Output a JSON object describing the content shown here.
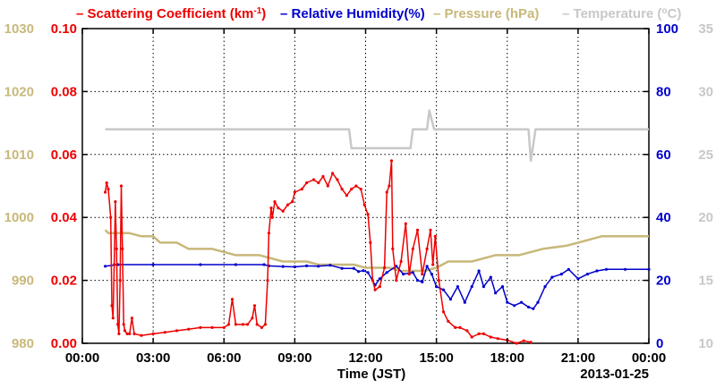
{
  "chart_data": {
    "type": "line",
    "legend": [
      {
        "label": "Scattering Coefficient (km",
        "sup": "-1",
        "suffix": ")",
        "color": "#ee0000"
      },
      {
        "label": "Relative Humidity(%)",
        "sup": "",
        "suffix": "",
        "color": "#0000cc"
      },
      {
        "label": "Pressure (hPa)",
        "sup": "",
        "suffix": "",
        "color": "#c8b87a"
      },
      {
        "label": "Temperature (",
        "sup": "o",
        "suffix": "C)",
        "color": "#c8c8c8"
      }
    ],
    "xlabel": "Time (JST)",
    "date_label": "2013-01-25",
    "x_ticks": [
      "00:00",
      "03:00",
      "06:00",
      "09:00",
      "12:00",
      "15:00",
      "18:00",
      "21:00",
      "00:00"
    ],
    "x_range_hours": [
      0,
      24
    ],
    "grid": true,
    "axes": {
      "pressure": {
        "ticks": [
          "980",
          "990",
          "1000",
          "1010",
          "1020",
          "1030"
        ],
        "range": [
          980,
          1030
        ],
        "color": "#c8b87a"
      },
      "scattering": {
        "ticks": [
          "0.00",
          "0.02",
          "0.04",
          "0.06",
          "0.08",
          "0.10"
        ],
        "range": [
          0,
          0.1
        ],
        "color": "#ee0000"
      },
      "humidity": {
        "ticks": [
          "0",
          "20",
          "40",
          "60",
          "80",
          "100"
        ],
        "range": [
          0,
          100
        ],
        "color": "#0000cc"
      },
      "temperature": {
        "ticks": [
          "10",
          "15",
          "20",
          "25",
          "30",
          "35"
        ],
        "range": [
          10,
          35
        ],
        "color": "#c8c8c8"
      }
    },
    "series": [
      {
        "key": "scattering",
        "color": "#ee0000",
        "points": [
          [
            0.97,
            0.048
          ],
          [
            1.03,
            0.051
          ],
          [
            1.1,
            0.049
          ],
          [
            1.2,
            0.04
          ],
          [
            1.25,
            0.012
          ],
          [
            1.3,
            0.008
          ],
          [
            1.35,
            0.025
          ],
          [
            1.4,
            0.045
          ],
          [
            1.45,
            0.03
          ],
          [
            1.5,
            0.006
          ],
          [
            1.55,
            0.003
          ],
          [
            1.6,
            0.02
          ],
          [
            1.65,
            0.05
          ],
          [
            1.7,
            0.03
          ],
          [
            1.75,
            0.006
          ],
          [
            1.8,
            0.004
          ],
          [
            1.9,
            0.003
          ],
          [
            2.0,
            0.003
          ],
          [
            2.1,
            0.008
          ],
          [
            2.2,
            0.003
          ],
          [
            2.5,
            0.0025
          ],
          [
            3.0,
            0.003
          ],
          [
            3.5,
            0.0035
          ],
          [
            4.0,
            0.004
          ],
          [
            4.5,
            0.0045
          ],
          [
            5.0,
            0.005
          ],
          [
            5.5,
            0.005
          ],
          [
            6.0,
            0.005
          ],
          [
            6.2,
            0.006
          ],
          [
            6.35,
            0.014
          ],
          [
            6.5,
            0.006
          ],
          [
            6.8,
            0.006
          ],
          [
            7.0,
            0.006
          ],
          [
            7.2,
            0.008
          ],
          [
            7.3,
            0.012
          ],
          [
            7.4,
            0.006
          ],
          [
            7.6,
            0.005
          ],
          [
            7.75,
            0.006
          ],
          [
            7.85,
            0.02
          ],
          [
            7.9,
            0.035
          ],
          [
            8.0,
            0.043
          ],
          [
            8.05,
            0.04
          ],
          [
            8.15,
            0.045
          ],
          [
            8.3,
            0.043
          ],
          [
            8.5,
            0.042
          ],
          [
            8.7,
            0.044
          ],
          [
            8.9,
            0.045
          ],
          [
            9.0,
            0.048
          ],
          [
            9.3,
            0.049
          ],
          [
            9.5,
            0.051
          ],
          [
            9.8,
            0.052
          ],
          [
            10.0,
            0.051
          ],
          [
            10.2,
            0.053
          ],
          [
            10.4,
            0.05
          ],
          [
            10.6,
            0.054
          ],
          [
            10.8,
            0.052
          ],
          [
            11.0,
            0.049
          ],
          [
            11.2,
            0.047
          ],
          [
            11.4,
            0.049
          ],
          [
            11.6,
            0.05
          ],
          [
            11.8,
            0.049
          ],
          [
            11.95,
            0.044
          ],
          [
            12.1,
            0.041
          ],
          [
            12.2,
            0.032
          ],
          [
            12.3,
            0.02
          ],
          [
            12.4,
            0.017
          ],
          [
            12.6,
            0.018
          ],
          [
            12.8,
            0.024
          ],
          [
            12.9,
            0.048
          ],
          [
            13.0,
            0.05
          ],
          [
            13.1,
            0.058
          ],
          [
            13.15,
            0.03
          ],
          [
            13.3,
            0.02
          ],
          [
            13.5,
            0.026
          ],
          [
            13.7,
            0.038
          ],
          [
            13.85,
            0.022
          ],
          [
            14.0,
            0.03
          ],
          [
            14.2,
            0.036
          ],
          [
            14.4,
            0.022
          ],
          [
            14.6,
            0.03
          ],
          [
            14.75,
            0.036
          ],
          [
            14.85,
            0.025
          ],
          [
            14.95,
            0.034
          ],
          [
            15.1,
            0.02
          ],
          [
            15.3,
            0.01
          ],
          [
            15.5,
            0.007
          ],
          [
            15.8,
            0.005
          ],
          [
            16.0,
            0.005
          ],
          [
            16.3,
            0.004
          ],
          [
            16.5,
            0.002
          ],
          [
            16.8,
            0.003
          ],
          [
            17.0,
            0.003
          ],
          [
            17.3,
            0.002
          ],
          [
            17.6,
            0.0015
          ],
          [
            18.0,
            0.001
          ],
          [
            18.4,
            0.0
          ],
          [
            18.7,
            0.0008
          ],
          [
            19.0,
            0.0003
          ]
        ]
      },
      {
        "key": "humidity",
        "color": "#0000cc",
        "points": [
          [
            0.97,
            24.5
          ],
          [
            1.5,
            25
          ],
          [
            3.0,
            25
          ],
          [
            5.0,
            25
          ],
          [
            6.5,
            25
          ],
          [
            7.7,
            25
          ],
          [
            7.9,
            24.6
          ],
          [
            8.5,
            24.4
          ],
          [
            9.0,
            24.3
          ],
          [
            9.5,
            24.6
          ],
          [
            10.0,
            24.5
          ],
          [
            10.5,
            24.8
          ],
          [
            11.0,
            23.8
          ],
          [
            11.5,
            23.8
          ],
          [
            11.7,
            22.8
          ],
          [
            11.9,
            23.1
          ],
          [
            12.1,
            22.5
          ],
          [
            12.4,
            18.5
          ],
          [
            12.6,
            20.5
          ],
          [
            12.9,
            22.5
          ],
          [
            13.3,
            24.5
          ],
          [
            13.6,
            22.0
          ],
          [
            14.0,
            22.5
          ],
          [
            14.2,
            20.0
          ],
          [
            14.4,
            19.5
          ],
          [
            14.6,
            24.5
          ],
          [
            14.8,
            22.0
          ],
          [
            15.0,
            18.0
          ],
          [
            15.3,
            17.0
          ],
          [
            15.6,
            14.0
          ],
          [
            15.9,
            18.0
          ],
          [
            16.2,
            13.0
          ],
          [
            16.5,
            18.0
          ],
          [
            16.8,
            23.0
          ],
          [
            17.0,
            18.0
          ],
          [
            17.3,
            21.0
          ],
          [
            17.5,
            16.0
          ],
          [
            17.8,
            18.0
          ],
          [
            18.0,
            13.0
          ],
          [
            18.3,
            12.0
          ],
          [
            18.6,
            13.0
          ],
          [
            18.9,
            11.5
          ],
          [
            19.1,
            11.0
          ],
          [
            19.3,
            13.0
          ],
          [
            19.6,
            18.0
          ],
          [
            19.9,
            21.0
          ],
          [
            20.3,
            22.0
          ],
          [
            20.6,
            23.5
          ],
          [
            21.0,
            20.5
          ],
          [
            21.4,
            22.0
          ],
          [
            21.8,
            23.0
          ],
          [
            22.2,
            23.5
          ],
          [
            23.0,
            23.5
          ],
          [
            24.0,
            23.5
          ]
        ]
      },
      {
        "key": "pressure",
        "color": "#c8b87a",
        "points": [
          [
            0.97,
            998
          ],
          [
            1.1,
            997.5
          ],
          [
            2.0,
            997.5
          ],
          [
            2.5,
            997
          ],
          [
            3.0,
            997
          ],
          [
            3.3,
            996
          ],
          [
            4.0,
            996
          ],
          [
            4.5,
            995
          ],
          [
            5.5,
            995
          ],
          [
            6.5,
            994
          ],
          [
            7.5,
            994
          ],
          [
            8.5,
            993
          ],
          [
            9.5,
            993
          ],
          [
            10.0,
            992.5
          ],
          [
            11.5,
            992.5
          ],
          [
            12.0,
            992
          ],
          [
            13.0,
            992
          ],
          [
            13.5,
            991.5
          ],
          [
            14.5,
            991.5
          ],
          [
            15.0,
            992
          ],
          [
            15.5,
            993
          ],
          [
            16.5,
            993
          ],
          [
            17.5,
            994
          ],
          [
            18.5,
            994
          ],
          [
            19.5,
            995
          ],
          [
            20.5,
            995.5
          ],
          [
            21.0,
            996
          ],
          [
            22.0,
            997
          ],
          [
            23.0,
            997
          ],
          [
            24.0,
            997
          ]
        ]
      },
      {
        "key": "temperature",
        "color": "#c8c8c8",
        "points": [
          [
            0.97,
            27
          ],
          [
            1.2,
            27
          ],
          [
            11.3,
            27
          ],
          [
            11.4,
            25.5
          ],
          [
            13.9,
            25.5
          ],
          [
            14.0,
            27
          ],
          [
            14.6,
            27
          ],
          [
            14.7,
            28.5
          ],
          [
            14.9,
            27
          ],
          [
            18.9,
            27
          ],
          [
            19.0,
            24.5
          ],
          [
            19.2,
            27
          ],
          [
            24.0,
            27
          ]
        ]
      }
    ]
  }
}
